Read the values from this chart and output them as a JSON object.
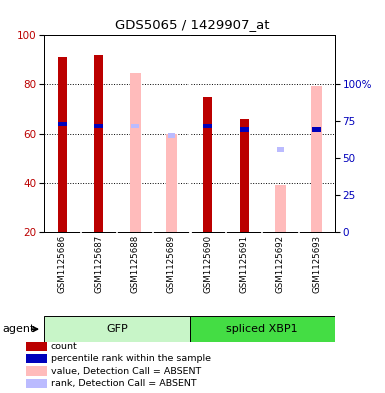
{
  "title": "GDS5065 / 1429907_at",
  "samples": [
    "GSM1125686",
    "GSM1125687",
    "GSM1125688",
    "GSM1125689",
    "GSM1125690",
    "GSM1125691",
    "GSM1125692",
    "GSM1125693"
  ],
  "red_bars": [
    91,
    92,
    0,
    0,
    75,
    66,
    0,
    0
  ],
  "blue_marker_y": [
    55,
    54,
    0,
    0,
    54,
    52,
    0,
    52
  ],
  "pink_bars": [
    0,
    0,
    81,
    50,
    0,
    0,
    24,
    74
  ],
  "lightblue_marker_y": [
    0,
    0,
    54,
    49,
    0,
    0,
    42,
    52
  ],
  "groups": [
    {
      "label": "GFP",
      "start": 0,
      "end": 3,
      "light_color": "#c8f5c8",
      "dark_color": "#c8f5c8"
    },
    {
      "label": "spliced XBP1",
      "start": 4,
      "end": 7,
      "light_color": "#33dd33",
      "dark_color": "#33dd33"
    }
  ],
  "ylim": [
    20,
    100
  ],
  "yticks_left": [
    20,
    40,
    60,
    80,
    100
  ],
  "ytick_labels_right": [
    "0",
    "25",
    "50",
    "75",
    "100%"
  ],
  "yticks_right_vals": [
    20,
    35,
    50,
    65,
    80
  ],
  "color_red": "#bb0000",
  "color_blue": "#0000bb",
  "color_pink": "#ffbbbb",
  "color_lightblue": "#bbbbff",
  "background_color": "#ffffff",
  "legend": [
    {
      "label": "count",
      "color": "#bb0000"
    },
    {
      "label": "percentile rank within the sample",
      "color": "#0000bb"
    },
    {
      "label": "value, Detection Call = ABSENT",
      "color": "#ffbbbb"
    },
    {
      "label": "rank, Detection Call = ABSENT",
      "color": "#bbbbff"
    }
  ],
  "gfp_color": "#c8f5c8",
  "xbp1_color": "#44dd44"
}
